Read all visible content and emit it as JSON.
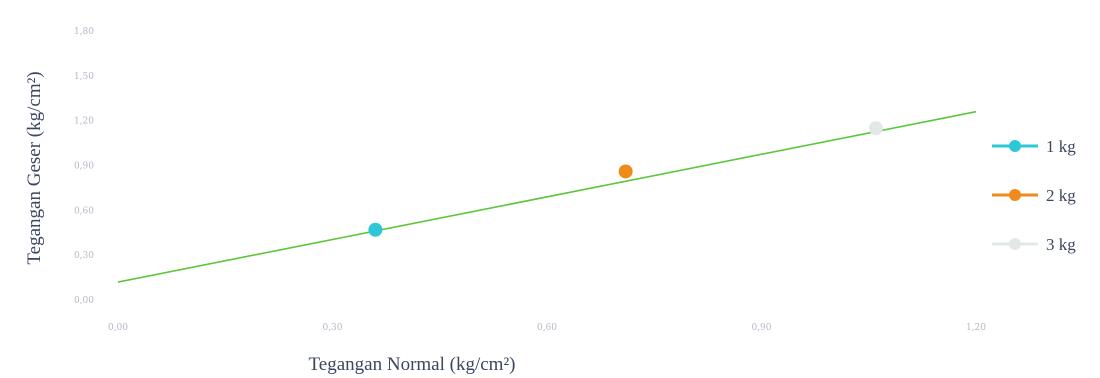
{
  "chart_data": {
    "type": "scatter",
    "xlabel": "Tegangan Normal (kg/cm²)",
    "ylabel": "Tegangan Geser (kg/cm²)",
    "xlim": [
      0,
      1.2
    ],
    "ylim": [
      0,
      1.8
    ],
    "x_ticks": [
      0,
      0.3,
      0.6,
      0.9,
      1.2
    ],
    "x_tick_labels": [
      "0,00",
      "0,30",
      "0,60",
      "0,90",
      "1,20"
    ],
    "y_ticks": [
      0,
      0.3,
      0.6,
      0.9,
      1.2,
      1.5,
      1.8
    ],
    "y_tick_labels": [
      "0,00",
      "0,30",
      "0,60",
      "0,90",
      "1,20",
      "1,50",
      "1,80"
    ],
    "grid": false,
    "legend_position": "right",
    "series": [
      {
        "name": "1 kg",
        "color": "#2ec7d6",
        "points": [
          {
            "x": 0.36,
            "y": 0.47
          }
        ]
      },
      {
        "name": "2 kg",
        "color": "#ef8a1b",
        "points": [
          {
            "x": 0.71,
            "y": 0.86
          }
        ]
      },
      {
        "name": "3 kg",
        "color": "#e2e8e8",
        "points": [
          {
            "x": 1.06,
            "y": 1.15
          }
        ]
      }
    ],
    "trendline": {
      "color": "#5cc63c",
      "x": [
        0,
        1.2
      ],
      "y": [
        0.12,
        1.26
      ]
    }
  }
}
